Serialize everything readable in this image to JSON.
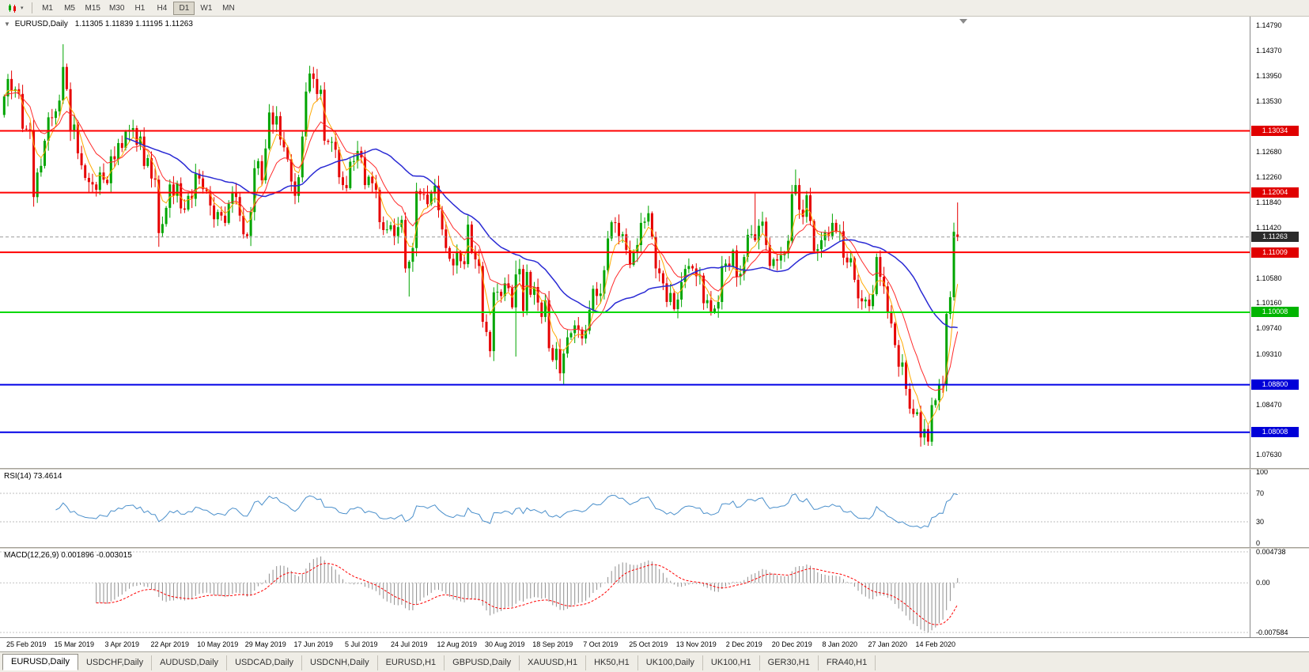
{
  "icons": {
    "chart_collapse": "▼",
    "dropdown_arrow": "▾"
  },
  "toolbar": {
    "timeframes": [
      "M1",
      "M5",
      "M15",
      "M30",
      "H1",
      "H4",
      "D1",
      "W1",
      "MN"
    ],
    "active_timeframe": "D1"
  },
  "chart": {
    "symbol_label": "EURUSD,Daily",
    "ohlc": "1.11305 1.11839 1.11195 1.11263"
  },
  "rsi_panel": {
    "label": "RSI(14) 73.4614",
    "axis_labels": [
      "100",
      "70",
      "30",
      "0"
    ]
  },
  "macd_panel": {
    "label": "MACD(12,26,9) 0.001896 -0.003015",
    "axis_labels": [
      "0.004738",
      "0.00",
      "-0.007584"
    ]
  },
  "price_axis": {
    "ticks": [
      "1.14790",
      "1.14370",
      "1.13950",
      "1.13530",
      "1.12680",
      "1.12260",
      "1.11840",
      "1.11420",
      "1.10580",
      "1.10160",
      "1.09740",
      "1.09310",
      "1.08470",
      "1.07630"
    ],
    "badges": [
      {
        "label": "1.13034",
        "value": 1.13034,
        "color": "#E00000"
      },
      {
        "label": "1.12004",
        "value": 1.12004,
        "color": "#E00000"
      },
      {
        "label": "1.11263",
        "value": 1.11263,
        "color": "#2b2b2b"
      },
      {
        "label": "1.11009",
        "value": 1.11009,
        "color": "#E00000"
      },
      {
        "label": "1.10008",
        "value": 1.10008,
        "color": "#00B400"
      },
      {
        "label": "1.08800",
        "value": 1.088,
        "color": "#0000D8"
      },
      {
        "label": "1.08008",
        "value": 1.08008,
        "color": "#0000D8"
      }
    ]
  },
  "time_axis": {
    "dates": [
      "25 Feb 2019",
      "15 Mar 2019",
      "3 Apr 2019",
      "22 Apr 2019",
      "10 May 2019",
      "29 May 2019",
      "17 Jun 2019",
      "5 Jul 2019",
      "24 Jul 2019",
      "12 Aug 2019",
      "30 Aug 2019",
      "18 Sep 2019",
      "7 Oct 2019",
      "25 Oct 2019",
      "13 Nov 2019",
      "2 Dec 2019",
      "20 Dec 2019",
      "8 Jan 2020",
      "27 Jan 2020",
      "14 Feb 2020"
    ]
  },
  "tabs": {
    "items": [
      "EURUSD,Daily",
      "USDCHF,Daily",
      "AUDUSD,Daily",
      "USDCAD,Daily",
      "USDCNH,Daily",
      "EURUSD,H1",
      "GBPUSD,Daily",
      "XAUUSD,H1",
      "HK50,H1",
      "UK100,Daily",
      "UK100,H1",
      "GER30,H1",
      "FRA40,H1"
    ],
    "active": "EURUSD,Daily"
  },
  "chart_data": {
    "type": "candlestick",
    "symbol": "EURUSD",
    "timeframe": "Daily",
    "last_ohlc": {
      "open": 1.11305,
      "high": 1.11839,
      "low": 1.11195,
      "close": 1.11263
    },
    "price_range": {
      "top": 1.1494,
      "bottom": 1.0741
    },
    "candles": {
      "first_open": 1.133,
      "closes": [
        1.1361,
        1.139,
        1.137,
        1.1373,
        1.1365,
        1.1307,
        1.1306,
        1.1305,
        1.1193,
        1.1234,
        1.1245,
        1.1287,
        1.1326,
        1.1325,
        1.1336,
        1.1354,
        1.141,
        1.1373,
        1.1302,
        1.1314,
        1.1266,
        1.1246,
        1.1225,
        1.1218,
        1.1214,
        1.1205,
        1.1234,
        1.1222,
        1.1216,
        1.1261,
        1.1256,
        1.1283,
        1.1275,
        1.1302,
        1.1305,
        1.1308,
        1.128,
        1.1294,
        1.1245,
        1.1258,
        1.1224,
        1.1222,
        1.1133,
        1.1148,
        1.1175,
        1.1214,
        1.1195,
        1.1216,
        1.1174,
        1.1172,
        1.1195,
        1.119,
        1.1232,
        1.1224,
        1.1206,
        1.1203,
        1.1179,
        1.1156,
        1.1168,
        1.1162,
        1.115,
        1.1182,
        1.12,
        1.1193,
        1.1162,
        1.1131,
        1.1128,
        1.1168,
        1.1241,
        1.1253,
        1.1221,
        1.1274,
        1.1334,
        1.1314,
        1.1328,
        1.1289,
        1.1276,
        1.1256,
        1.1219,
        1.1195,
        1.1226,
        1.1294,
        1.1369,
        1.1399,
        1.139,
        1.1365,
        1.1372,
        1.1287,
        1.1285,
        1.1285,
        1.1272,
        1.1226,
        1.1213,
        1.1208,
        1.1252,
        1.1253,
        1.127,
        1.1259,
        1.1213,
        1.1227,
        1.1216,
        1.1205,
        1.1151,
        1.1138,
        1.1139,
        1.1146,
        1.1128,
        1.1143,
        1.1155,
        1.1074,
        1.1085,
        1.1108,
        1.1203,
        1.1198,
        1.1197,
        1.1181,
        1.1199,
        1.1212,
        1.1171,
        1.1139,
        1.1108,
        1.109,
        1.1079,
        1.11,
        1.1086,
        1.1081,
        1.1147,
        1.1101,
        1.1089,
        1.1078,
        1.0985,
        1.0968,
        1.0936,
        1.1034,
        1.1035,
        1.1028,
        1.1049,
        1.1041,
        1.1009,
        1.1064,
        1.1073,
        1.1003,
        1.1068,
        1.103,
        1.1043,
        1.1017,
        1.0993,
        1.1021,
        1.0941,
        1.0921,
        1.094,
        1.0899,
        1.0932,
        1.0959,
        1.0966,
        1.0979,
        1.0972,
        1.0957,
        1.097,
        1.1005,
        1.104,
        1.1028,
        1.1032,
        1.1071,
        1.1124,
        1.1151,
        1.115,
        1.1128,
        1.1131,
        1.1105,
        1.108,
        1.11,
        1.1113,
        1.115,
        1.1152,
        1.1166,
        1.1127,
        1.1074,
        1.1066,
        1.1049,
        1.1018,
        1.1033,
        1.1006,
        1.1022,
        1.1051,
        1.1073,
        1.1078,
        1.1074,
        1.1061,
        1.1062,
        1.1016,
        1.1021,
        1.1001,
        1.1007,
        1.1018,
        1.1078,
        1.1082,
        1.1077,
        1.1104,
        1.106,
        1.1065,
        1.1093,
        1.113,
        1.1131,
        1.1121,
        1.1145,
        1.1152,
        1.1113,
        1.1078,
        1.1089,
        1.1087,
        1.1096,
        1.1099,
        1.112,
        1.1198,
        1.1213,
        1.1172,
        1.116,
        1.1196,
        1.1153,
        1.1103,
        1.1106,
        1.1121,
        1.1134,
        1.1128,
        1.115,
        1.1135,
        1.1136,
        1.1092,
        1.1084,
        1.1091,
        1.1055,
        1.1024,
        1.1019,
        1.1022,
        1.1011,
        1.1031,
        1.1093,
        1.106,
        1.1044,
        1.1,
        1.0982,
        1.0946,
        1.091,
        1.0917,
        1.0873,
        1.084,
        1.0831,
        1.0834,
        1.0792,
        1.0806,
        1.0785,
        1.0846,
        1.0854,
        1.0881,
        1.088,
        1.0998,
        1.1026,
        1.1135,
        1.11263
      ],
      "special": {
        "8": {
          "l": 1.1177
        },
        "16": {
          "h": 1.1448
        },
        "42": {
          "l": 1.111
        },
        "72": {
          "h": 1.1348
        },
        "83": {
          "h": 1.1412
        },
        "110": {
          "l": 1.1027
        },
        "132": {
          "l": 1.0926
        },
        "139": {
          "l": 1.0927,
          "h": 1.1087
        },
        "152": {
          "l": 1.0879
        },
        "204": {
          "h": 1.1199
        },
        "215": {
          "h": 1.1239
        },
        "251": {
          "l": 1.0778
        },
        "259": {
          "o": 1.11305,
          "h": 1.11839,
          "l": 1.11195,
          "c": 1.11263
        }
      }
    },
    "colors": {
      "up": "#00A500",
      "down": "#E60000",
      "rsi": "#4A8FCB",
      "macd_hist": "#8F8F8F",
      "macd_signal": "#FF0000"
    },
    "moving_averages": [
      {
        "type": "ema",
        "period": 5,
        "color": "#FFAA00",
        "width": 1
      },
      {
        "type": "ema",
        "period": 13,
        "color": "#FF2A2A",
        "width": 1
      },
      {
        "type": "sma",
        "period": 34,
        "color": "#2A2AD4",
        "width": 1.5
      }
    ],
    "hlines": [
      {
        "value": 1.13034,
        "color": "#FF0000",
        "width": 2
      },
      {
        "value": 1.12004,
        "color": "#FF0000",
        "width": 2
      },
      {
        "value": 1.11009,
        "color": "#FF0000",
        "width": 2
      },
      {
        "value": 1.10008,
        "color": "#00D800",
        "width": 2
      },
      {
        "value": 1.088,
        "color": "#0000E6",
        "width": 2
      },
      {
        "value": 1.08008,
        "color": "#0000E6",
        "width": 2
      }
    ],
    "price_line": {
      "value": 1.11263,
      "color": "#9A9A9A"
    },
    "rsi": {
      "period": 14,
      "current": 73.4614,
      "levels": [
        70,
        30
      ],
      "range": [
        0,
        100
      ]
    },
    "macd": {
      "fast": 12,
      "slow": 26,
      "signal": 9,
      "current_main": 0.001896,
      "current_signal": -0.003015,
      "range": [
        -0.0075847,
        0.004738
      ]
    }
  }
}
